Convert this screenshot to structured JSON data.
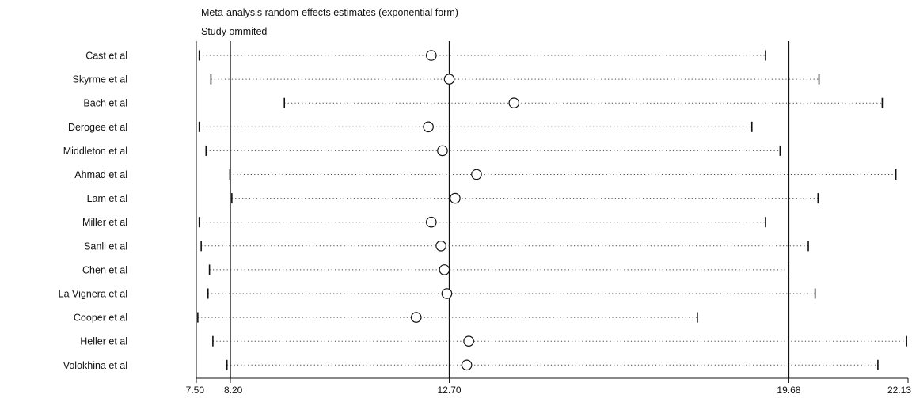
{
  "header": {
    "title": "Meta-analysis random-effects estimates (exponential form)",
    "subtitle": "Study ommited"
  },
  "chart_data": {
    "type": "forest-sensitivity",
    "title": "Meta-analysis random-effects estimates (exponential form)",
    "subtitle": "Study ommited",
    "xlim": [
      7.5,
      22.13
    ],
    "x_ticks": [
      7.5,
      8.2,
      12.7,
      19.68,
      22.13
    ],
    "x_tick_labels": [
      "7.50",
      "8.20",
      "12.70",
      "19.68",
      "22.13"
    ],
    "reference_lines": [
      8.2,
      12.7,
      19.68
    ],
    "studies": [
      {
        "label": "Cast et al",
        "lower": 7.56,
        "estimate": 12.33,
        "upper": 19.2
      },
      {
        "label": "Skyrme et al",
        "lower": 7.8,
        "estimate": 12.7,
        "upper": 20.3
      },
      {
        "label": "Bach et al",
        "lower": 9.31,
        "estimate": 14.03,
        "upper": 21.6
      },
      {
        "label": "Derogee et al",
        "lower": 7.56,
        "estimate": 12.27,
        "upper": 18.92
      },
      {
        "label": "Middleton et al",
        "lower": 7.7,
        "estimate": 12.56,
        "upper": 19.5
      },
      {
        "label": "Ahmad et al",
        "lower": 8.19,
        "estimate": 13.26,
        "upper": 21.88
      },
      {
        "label": "Lam et al",
        "lower": 8.23,
        "estimate": 12.82,
        "upper": 20.28
      },
      {
        "label": "Miller et al",
        "lower": 7.56,
        "estimate": 12.33,
        "upper": 19.2
      },
      {
        "label": "Sanli et al",
        "lower": 7.6,
        "estimate": 12.53,
        "upper": 20.08
      },
      {
        "label": "Chen et al",
        "lower": 7.77,
        "estimate": 12.6,
        "upper": 19.67
      },
      {
        "label": "La Vignera et al",
        "lower": 7.74,
        "estimate": 12.65,
        "upper": 20.22
      },
      {
        "label": "Cooper et al",
        "lower": 7.53,
        "estimate": 12.02,
        "upper": 17.8
      },
      {
        "label": "Heller et al",
        "lower": 7.84,
        "estimate": 13.1,
        "upper": 22.1
      },
      {
        "label": "Volokhina et al",
        "lower": 8.13,
        "estimate": 13.06,
        "upper": 21.51
      }
    ]
  }
}
